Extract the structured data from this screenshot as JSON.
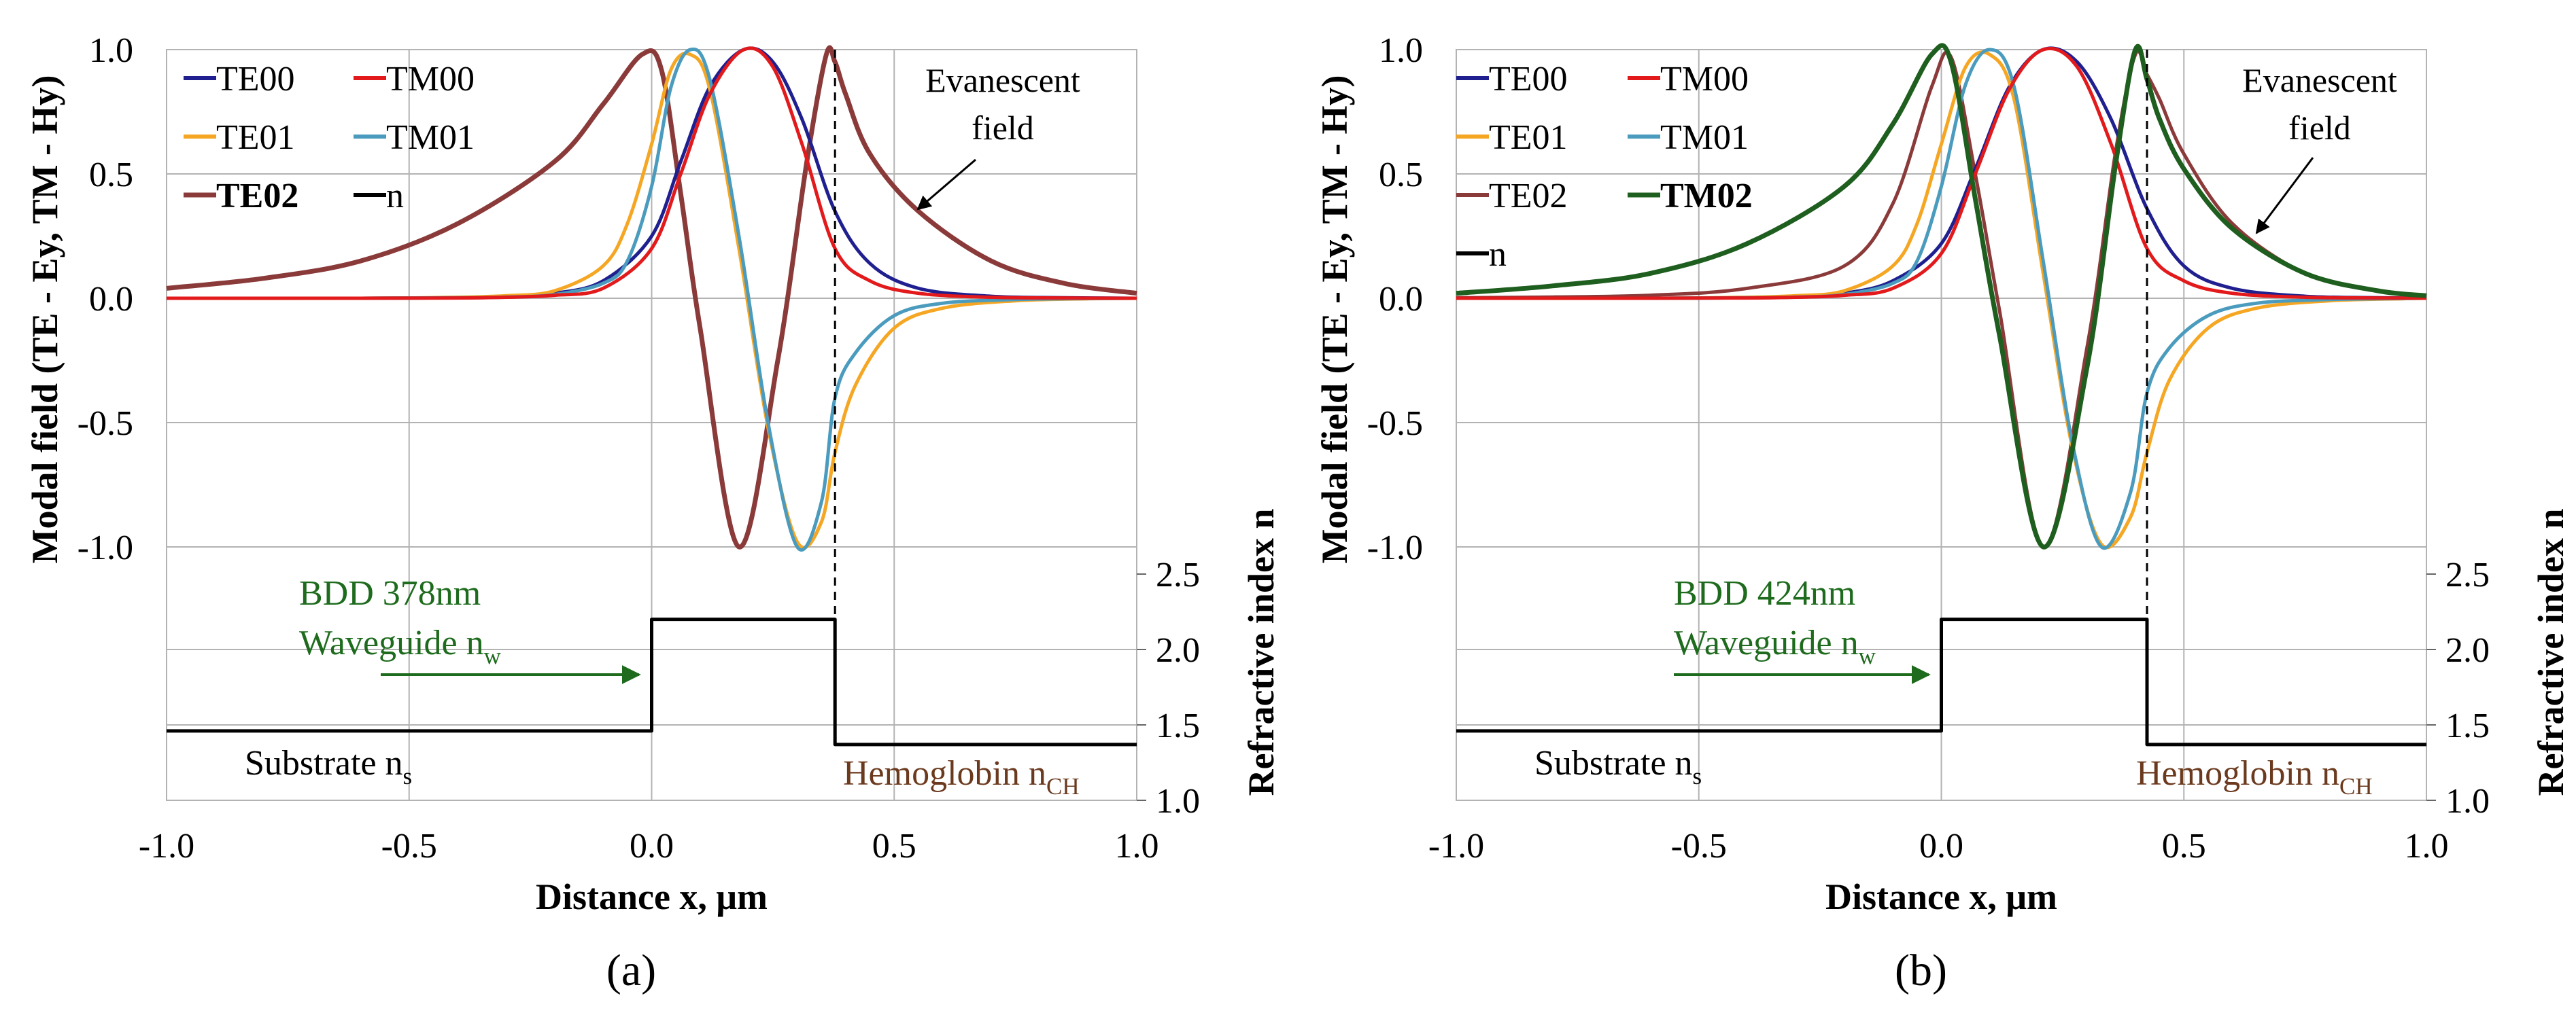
{
  "colors": {
    "TE00": "#1f1f8f",
    "TM00": "#e31a1c",
    "TE01": "#f5a623",
    "TM01": "#4a9bbd",
    "TE02": "#8b3a3a",
    "TM02": "#1e5e1e",
    "n": "#000000",
    "grid": "#b3b3b3",
    "annot_green": "#1e6b1e",
    "annot_brown": "#6b3a1e"
  },
  "chart_data": [
    {
      "type": "line",
      "panel_label": "(a)",
      "ylabel_left": "Modal field (TE - Ey, TM - Hy)",
      "ylabel_right": "Refractive index n",
      "xlabel": "Distance x, μm",
      "xlim": [
        -1.0,
        1.0
      ],
      "x_ticks": [
        "-1.0",
        "-0.5",
        "0.0",
        "0.5",
        "1.0"
      ],
      "ylim_field": [
        -1.0,
        1.0
      ],
      "y_ticks_left": [
        "1.0",
        "0.5",
        "0.0",
        "-0.5",
        "-1.0"
      ],
      "ylim_index": [
        1.0,
        2.5
      ],
      "y_ticks_right": [
        "2.5",
        "2.0",
        "1.5",
        "1.0"
      ],
      "waveguide_thickness_um": 0.378,
      "legend": [
        {
          "key": "TE00",
          "label": "TE00",
          "bold": false
        },
        {
          "key": "TM00",
          "label": "TM00",
          "bold": false
        },
        {
          "key": "TE01",
          "label": "TE01",
          "bold": false
        },
        {
          "key": "TM01",
          "label": "TM01",
          "bold": false
        },
        {
          "key": "TE02",
          "label": "TE02",
          "bold": true
        },
        {
          "key": "n",
          "label": "n",
          "bold": false
        }
      ],
      "annotations": {
        "evanescent_line1": "Evanescent",
        "evanescent_line2": "field",
        "bdd": "BDD 378nm",
        "waveguide": "Waveguide n",
        "waveguide_sub": "w",
        "substrate": "Substrate n",
        "substrate_sub": "s",
        "hemoglobin": "Hemoglobin n",
        "hemoglobin_sub": "CH"
      },
      "series": [
        {
          "name": "TE00",
          "x": [
            -1.0,
            -0.6,
            -0.4,
            -0.3,
            -0.2,
            -0.1,
            0.0,
            0.06,
            0.12,
            0.19,
            0.25,
            0.31,
            0.378,
            0.45,
            0.55,
            0.7,
            0.85,
            1.0
          ],
          "y": [
            0,
            0,
            0.002,
            0.006,
            0.02,
            0.07,
            0.25,
            0.55,
            0.85,
            1.0,
            0.95,
            0.72,
            0.35,
            0.14,
            0.04,
            0.008,
            0.002,
            0
          ]
        },
        {
          "name": "TM00",
          "x": [
            -1.0,
            -0.6,
            -0.4,
            -0.3,
            -0.2,
            -0.1,
            0.0,
            0.06,
            0.12,
            0.19,
            0.25,
            0.31,
            0.378,
            0.45,
            0.55,
            0.7,
            0.85,
            1.0
          ],
          "y": [
            0,
            0,
            0.001,
            0.004,
            0.012,
            0.04,
            0.2,
            0.5,
            0.82,
            1.0,
            0.93,
            0.62,
            0.2,
            0.07,
            0.02,
            0.004,
            0.001,
            0
          ]
        },
        {
          "name": "TE01",
          "x": [
            -1.0,
            -0.6,
            -0.4,
            -0.3,
            -0.2,
            -0.1,
            -0.05,
            0.0,
            0.04,
            0.08,
            0.12,
            0.18,
            0.24,
            0.3,
            0.35,
            0.378,
            0.42,
            0.5,
            0.6,
            0.75,
            0.9,
            1.0
          ],
          "y": [
            0,
            0,
            0.004,
            0.01,
            0.03,
            0.13,
            0.3,
            0.62,
            0.92,
            0.98,
            0.84,
            0.2,
            -0.52,
            -0.98,
            -0.9,
            -0.62,
            -0.35,
            -0.12,
            -0.04,
            -0.01,
            -0.002,
            0
          ]
        },
        {
          "name": "TM01",
          "x": [
            -1.0,
            -0.6,
            -0.4,
            -0.3,
            -0.2,
            -0.1,
            -0.05,
            0.0,
            0.04,
            0.08,
            0.12,
            0.18,
            0.24,
            0.3,
            0.35,
            0.378,
            0.42,
            0.5,
            0.6,
            0.75,
            0.9,
            1.0
          ],
          "y": [
            0,
            0,
            0.002,
            0.005,
            0.015,
            0.06,
            0.15,
            0.45,
            0.85,
            1.0,
            0.88,
            0.25,
            -0.5,
            -1.0,
            -0.82,
            -0.4,
            -0.22,
            -0.07,
            -0.02,
            -0.005,
            -0.001,
            0
          ]
        },
        {
          "name": "TE02",
          "x": [
            -1.0,
            -0.8,
            -0.6,
            -0.4,
            -0.2,
            -0.1,
            -0.02,
            0.02,
            0.06,
            0.1,
            0.18,
            0.26,
            0.32,
            0.36,
            0.378,
            0.4,
            0.45,
            0.55,
            0.7,
            0.85,
            1.0
          ],
          "y": [
            0.04,
            0.08,
            0.15,
            0.3,
            0.55,
            0.78,
            0.98,
            0.92,
            0.42,
            -0.12,
            -1.0,
            -0.25,
            0.55,
            0.98,
            0.95,
            0.82,
            0.58,
            0.35,
            0.15,
            0.06,
            0.02
          ]
        },
        {
          "name": "n",
          "x": [
            -1.0,
            0.0,
            0.0,
            0.378,
            0.378,
            1.0
          ],
          "y": [
            1.46,
            1.46,
            2.2,
            2.2,
            1.37,
            1.37
          ],
          "axis": "right"
        }
      ]
    },
    {
      "type": "line",
      "panel_label": "(b)",
      "ylabel_left": "Modal field (TE - Ey, TM - Hy)",
      "ylabel_right": "Refractive index n",
      "xlabel": "Distance x, μm",
      "xlim": [
        -1.0,
        1.0
      ],
      "x_ticks": [
        "-1.0",
        "-0.5",
        "0.0",
        "0.5",
        "1.0"
      ],
      "ylim_field": [
        -1.0,
        1.0
      ],
      "y_ticks_left": [
        "1.0",
        "0.5",
        "0.0",
        "-0.5",
        "-1.0"
      ],
      "ylim_index": [
        1.0,
        2.5
      ],
      "y_ticks_right": [
        "2.5",
        "2.0",
        "1.5",
        "1.0"
      ],
      "waveguide_thickness_um": 0.424,
      "legend": [
        {
          "key": "TE00",
          "label": "TE00",
          "bold": false
        },
        {
          "key": "TM00",
          "label": "TM00",
          "bold": false
        },
        {
          "key": "TE01",
          "label": "TE01",
          "bold": false
        },
        {
          "key": "TM01",
          "label": "TM01",
          "bold": false
        },
        {
          "key": "TE02",
          "label": "TE02",
          "bold": false
        },
        {
          "key": "TM02",
          "label": "TM02",
          "bold": true
        },
        {
          "key": "n",
          "label": "n",
          "bold": false
        }
      ],
      "annotations": {
        "evanescent_line1": "Evanescent",
        "evanescent_line2": "field",
        "bdd": "BDD 424nm",
        "waveguide": "Waveguide n",
        "waveguide_sub": "w",
        "substrate": "Substrate n",
        "substrate_sub": "s",
        "hemoglobin": "Hemoglobin n",
        "hemoglobin_sub": "CH"
      },
      "series": [
        {
          "name": "TE00",
          "x": [
            -1.0,
            -0.6,
            -0.4,
            -0.3,
            -0.2,
            -0.1,
            0.0,
            0.07,
            0.14,
            0.21,
            0.28,
            0.35,
            0.424,
            0.5,
            0.6,
            0.75,
            0.9,
            1.0
          ],
          "y": [
            0,
            0,
            0.002,
            0.006,
            0.02,
            0.07,
            0.22,
            0.52,
            0.85,
            1.0,
            0.95,
            0.72,
            0.36,
            0.13,
            0.04,
            0.008,
            0.002,
            0
          ]
        },
        {
          "name": "TM00",
          "x": [
            -1.0,
            -0.6,
            -0.4,
            -0.3,
            -0.2,
            -0.1,
            0.0,
            0.07,
            0.14,
            0.21,
            0.28,
            0.35,
            0.424,
            0.5,
            0.6,
            0.75,
            0.9,
            1.0
          ],
          "y": [
            0,
            0,
            0.001,
            0.004,
            0.012,
            0.04,
            0.18,
            0.5,
            0.84,
            1.0,
            0.93,
            0.62,
            0.2,
            0.07,
            0.02,
            0.004,
            0.001,
            0
          ]
        },
        {
          "name": "TE01",
          "x": [
            -1.0,
            -0.6,
            -0.4,
            -0.3,
            -0.2,
            -0.1,
            -0.05,
            0.0,
            0.05,
            0.1,
            0.15,
            0.21,
            0.27,
            0.33,
            0.39,
            0.424,
            0.47,
            0.55,
            0.65,
            0.8,
            0.95,
            1.0
          ],
          "y": [
            0,
            0,
            0.004,
            0.01,
            0.03,
            0.13,
            0.3,
            0.62,
            0.93,
            0.98,
            0.8,
            0.1,
            -0.6,
            -0.99,
            -0.88,
            -0.62,
            -0.33,
            -0.12,
            -0.04,
            -0.01,
            -0.002,
            0
          ]
        },
        {
          "name": "TM01",
          "x": [
            -1.0,
            -0.6,
            -0.4,
            -0.3,
            -0.2,
            -0.1,
            -0.05,
            0.0,
            0.05,
            0.1,
            0.15,
            0.21,
            0.27,
            0.33,
            0.39,
            0.424,
            0.47,
            0.55,
            0.65,
            0.8,
            0.95,
            1.0
          ],
          "y": [
            0,
            0,
            0.002,
            0.005,
            0.015,
            0.06,
            0.15,
            0.45,
            0.86,
            1.0,
            0.85,
            0.15,
            -0.58,
            -1.0,
            -0.78,
            -0.38,
            -0.2,
            -0.07,
            -0.02,
            -0.005,
            -0.001,
            0
          ]
        },
        {
          "name": "TE02",
          "x": [
            -1.0,
            -0.8,
            -0.6,
            -0.4,
            -0.2,
            -0.1,
            -0.02,
            0.02,
            0.07,
            0.12,
            0.21,
            0.3,
            0.36,
            0.4,
            0.424,
            0.45,
            0.5,
            0.6,
            0.75,
            0.9,
            1.0
          ],
          "y": [
            0.002,
            0.005,
            0.012,
            0.04,
            0.13,
            0.38,
            0.85,
            0.97,
            0.5,
            -0.05,
            -1.0,
            -0.2,
            0.6,
            0.98,
            0.9,
            0.8,
            0.58,
            0.3,
            0.1,
            0.03,
            0.01
          ]
        },
        {
          "name": "TM02",
          "x": [
            -1.0,
            -0.8,
            -0.6,
            -0.4,
            -0.2,
            -0.1,
            -0.02,
            0.02,
            0.07,
            0.12,
            0.21,
            0.3,
            0.36,
            0.4,
            0.424,
            0.45,
            0.5,
            0.6,
            0.75,
            0.9,
            1.0
          ],
          "y": [
            0.02,
            0.05,
            0.1,
            0.22,
            0.45,
            0.7,
            0.98,
            0.95,
            0.4,
            -0.15,
            -1.0,
            -0.28,
            0.55,
            1.0,
            0.88,
            0.72,
            0.52,
            0.28,
            0.1,
            0.03,
            0.01
          ]
        },
        {
          "name": "n",
          "x": [
            -1.0,
            0.0,
            0.0,
            0.424,
            0.424,
            1.0
          ],
          "y": [
            1.46,
            1.46,
            2.2,
            2.2,
            1.37,
            1.37
          ],
          "axis": "right"
        }
      ]
    }
  ]
}
